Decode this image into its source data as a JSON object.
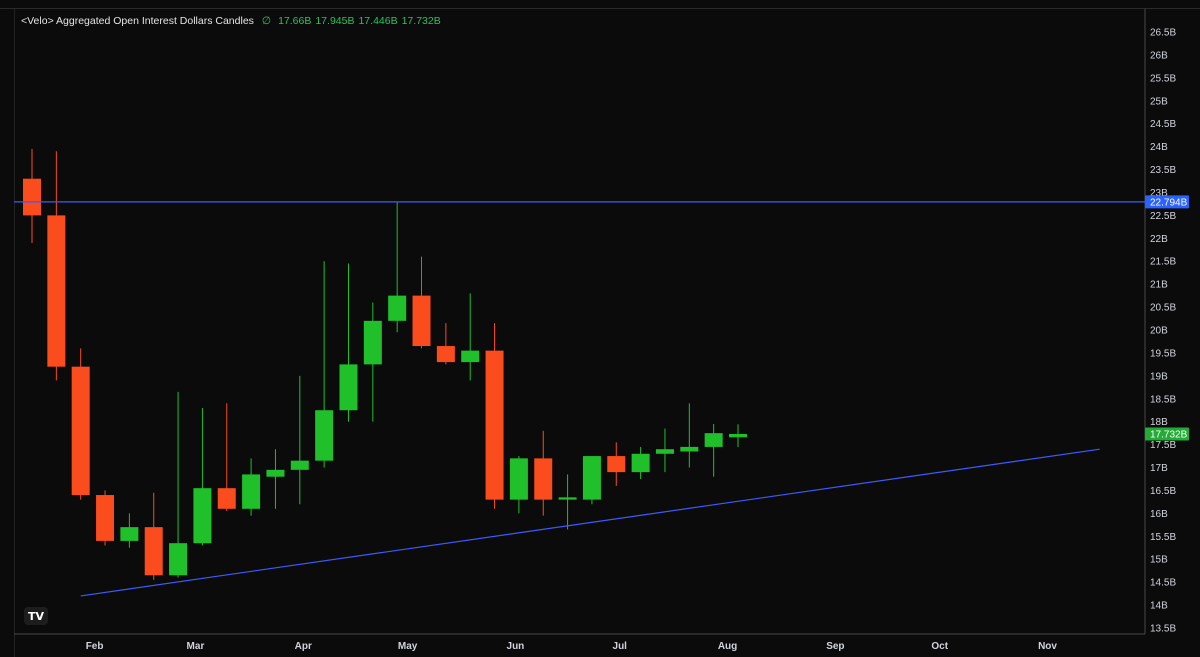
{
  "legend": {
    "title": "<Velo> Aggregated Open Interest Dollars Candles",
    "symbol_mark": "∅",
    "open": "17.66B",
    "high": "17.945B",
    "low": "17.446B",
    "close": "17.732B"
  },
  "horizontal_line_label": "22.794B",
  "last_price_label": "17.732B",
  "logo_text": "TV",
  "colors": {
    "up": "#1fc02a",
    "down": "#fa4c1d",
    "line": "#3b5bff",
    "background": "#0b0b0b"
  },
  "chart_data": {
    "type": "candlestick",
    "title": "<Velo> Aggregated Open Interest Dollars Candles",
    "y_unit": "B",
    "ylim": [
      13.4,
      26.8
    ],
    "y_ticks": [
      "26.5B",
      "26B",
      "25.5B",
      "25B",
      "24.5B",
      "24B",
      "23.5B",
      "23B",
      "22.5B",
      "22B",
      "21.5B",
      "21B",
      "20.5B",
      "20B",
      "19.5B",
      "19B",
      "18.5B",
      "18B",
      "17.5B",
      "17B",
      "16.5B",
      "16B",
      "15.5B",
      "15B",
      "14.5B",
      "14B",
      "13.5B"
    ],
    "x_ticks": [
      "Feb",
      "Mar",
      "Apr",
      "May",
      "Jun",
      "Jul",
      "Aug",
      "Sep",
      "Oct",
      "Nov"
    ],
    "candles": [
      {
        "date": "2024-01-14",
        "open": 23.3,
        "high": 23.95,
        "low": 21.9,
        "close": 22.5
      },
      {
        "date": "2024-01-21",
        "open": 22.5,
        "high": 23.9,
        "low": 18.9,
        "close": 19.2
      },
      {
        "date": "2024-01-28",
        "open": 19.2,
        "high": 19.6,
        "low": 16.3,
        "close": 16.4
      },
      {
        "date": "2024-02-04",
        "open": 16.4,
        "high": 16.5,
        "low": 15.3,
        "close": 15.4
      },
      {
        "date": "2024-02-11",
        "open": 15.4,
        "high": 16.0,
        "low": 15.25,
        "close": 15.7
      },
      {
        "date": "2024-02-18",
        "open": 15.7,
        "high": 16.45,
        "low": 14.55,
        "close": 14.65
      },
      {
        "date": "2024-02-25",
        "open": 14.65,
        "high": 18.65,
        "low": 14.6,
        "close": 15.35
      },
      {
        "date": "2024-03-03",
        "open": 15.35,
        "high": 18.3,
        "low": 15.3,
        "close": 16.55
      },
      {
        "date": "2024-03-10",
        "open": 16.55,
        "high": 18.4,
        "low": 16.05,
        "close": 16.1
      },
      {
        "date": "2024-03-17",
        "open": 16.1,
        "high": 17.2,
        "low": 15.95,
        "close": 16.85
      },
      {
        "date": "2024-03-24",
        "open": 16.8,
        "high": 17.4,
        "low": 16.1,
        "close": 16.95
      },
      {
        "date": "2024-03-31",
        "open": 16.95,
        "high": 19.0,
        "low": 16.2,
        "close": 17.15
      },
      {
        "date": "2024-04-07",
        "open": 17.15,
        "high": 21.5,
        "low": 17.0,
        "close": 18.25
      },
      {
        "date": "2024-04-14",
        "open": 18.25,
        "high": 21.45,
        "low": 18.0,
        "close": 19.25
      },
      {
        "date": "2024-04-21",
        "open": 19.25,
        "high": 20.6,
        "low": 18.0,
        "close": 20.2
      },
      {
        "date": "2024-04-28",
        "open": 20.2,
        "high": 22.8,
        "low": 19.95,
        "close": 20.75
      },
      {
        "date": "2024-05-05",
        "open": 20.75,
        "high": 21.6,
        "low": 19.6,
        "close": 19.65
      },
      {
        "date": "2024-05-12",
        "open": 19.65,
        "high": 20.15,
        "low": 19.25,
        "close": 19.3
      },
      {
        "date": "2024-05-19",
        "open": 19.3,
        "high": 20.8,
        "low": 18.9,
        "close": 19.55
      },
      {
        "date": "2024-05-26",
        "open": 19.55,
        "high": 20.15,
        "low": 16.1,
        "close": 16.3
      },
      {
        "date": "2024-06-02",
        "open": 16.3,
        "high": 17.25,
        "low": 16.0,
        "close": 17.2
      },
      {
        "date": "2024-06-09",
        "open": 17.2,
        "high": 17.8,
        "low": 15.95,
        "close": 16.3
      },
      {
        "date": "2024-06-16",
        "open": 16.3,
        "high": 16.85,
        "low": 15.65,
        "close": 16.35
      },
      {
        "date": "2024-06-23",
        "open": 16.3,
        "high": 17.25,
        "low": 16.2,
        "close": 17.25
      },
      {
        "date": "2024-06-30",
        "open": 17.25,
        "high": 17.55,
        "low": 16.6,
        "close": 16.9
      },
      {
        "date": "2024-07-07",
        "open": 16.9,
        "high": 17.45,
        "low": 16.75,
        "close": 17.3
      },
      {
        "date": "2024-07-14",
        "open": 17.3,
        "high": 17.85,
        "low": 16.9,
        "close": 17.4
      },
      {
        "date": "2024-07-21",
        "open": 17.35,
        "high": 18.4,
        "low": 17.0,
        "close": 17.45
      },
      {
        "date": "2024-07-28",
        "open": 17.45,
        "high": 17.95,
        "low": 16.8,
        "close": 17.75
      },
      {
        "date": "2024-08-04",
        "open": 17.66,
        "high": 17.945,
        "low": 17.446,
        "close": 17.732
      }
    ],
    "horizontal_line": {
      "value": 22.794
    },
    "trendline": {
      "start": {
        "date": "2024-01-28",
        "value": 14.2
      },
      "end": {
        "date": "2024-11-16",
        "value": 17.4
      }
    }
  }
}
